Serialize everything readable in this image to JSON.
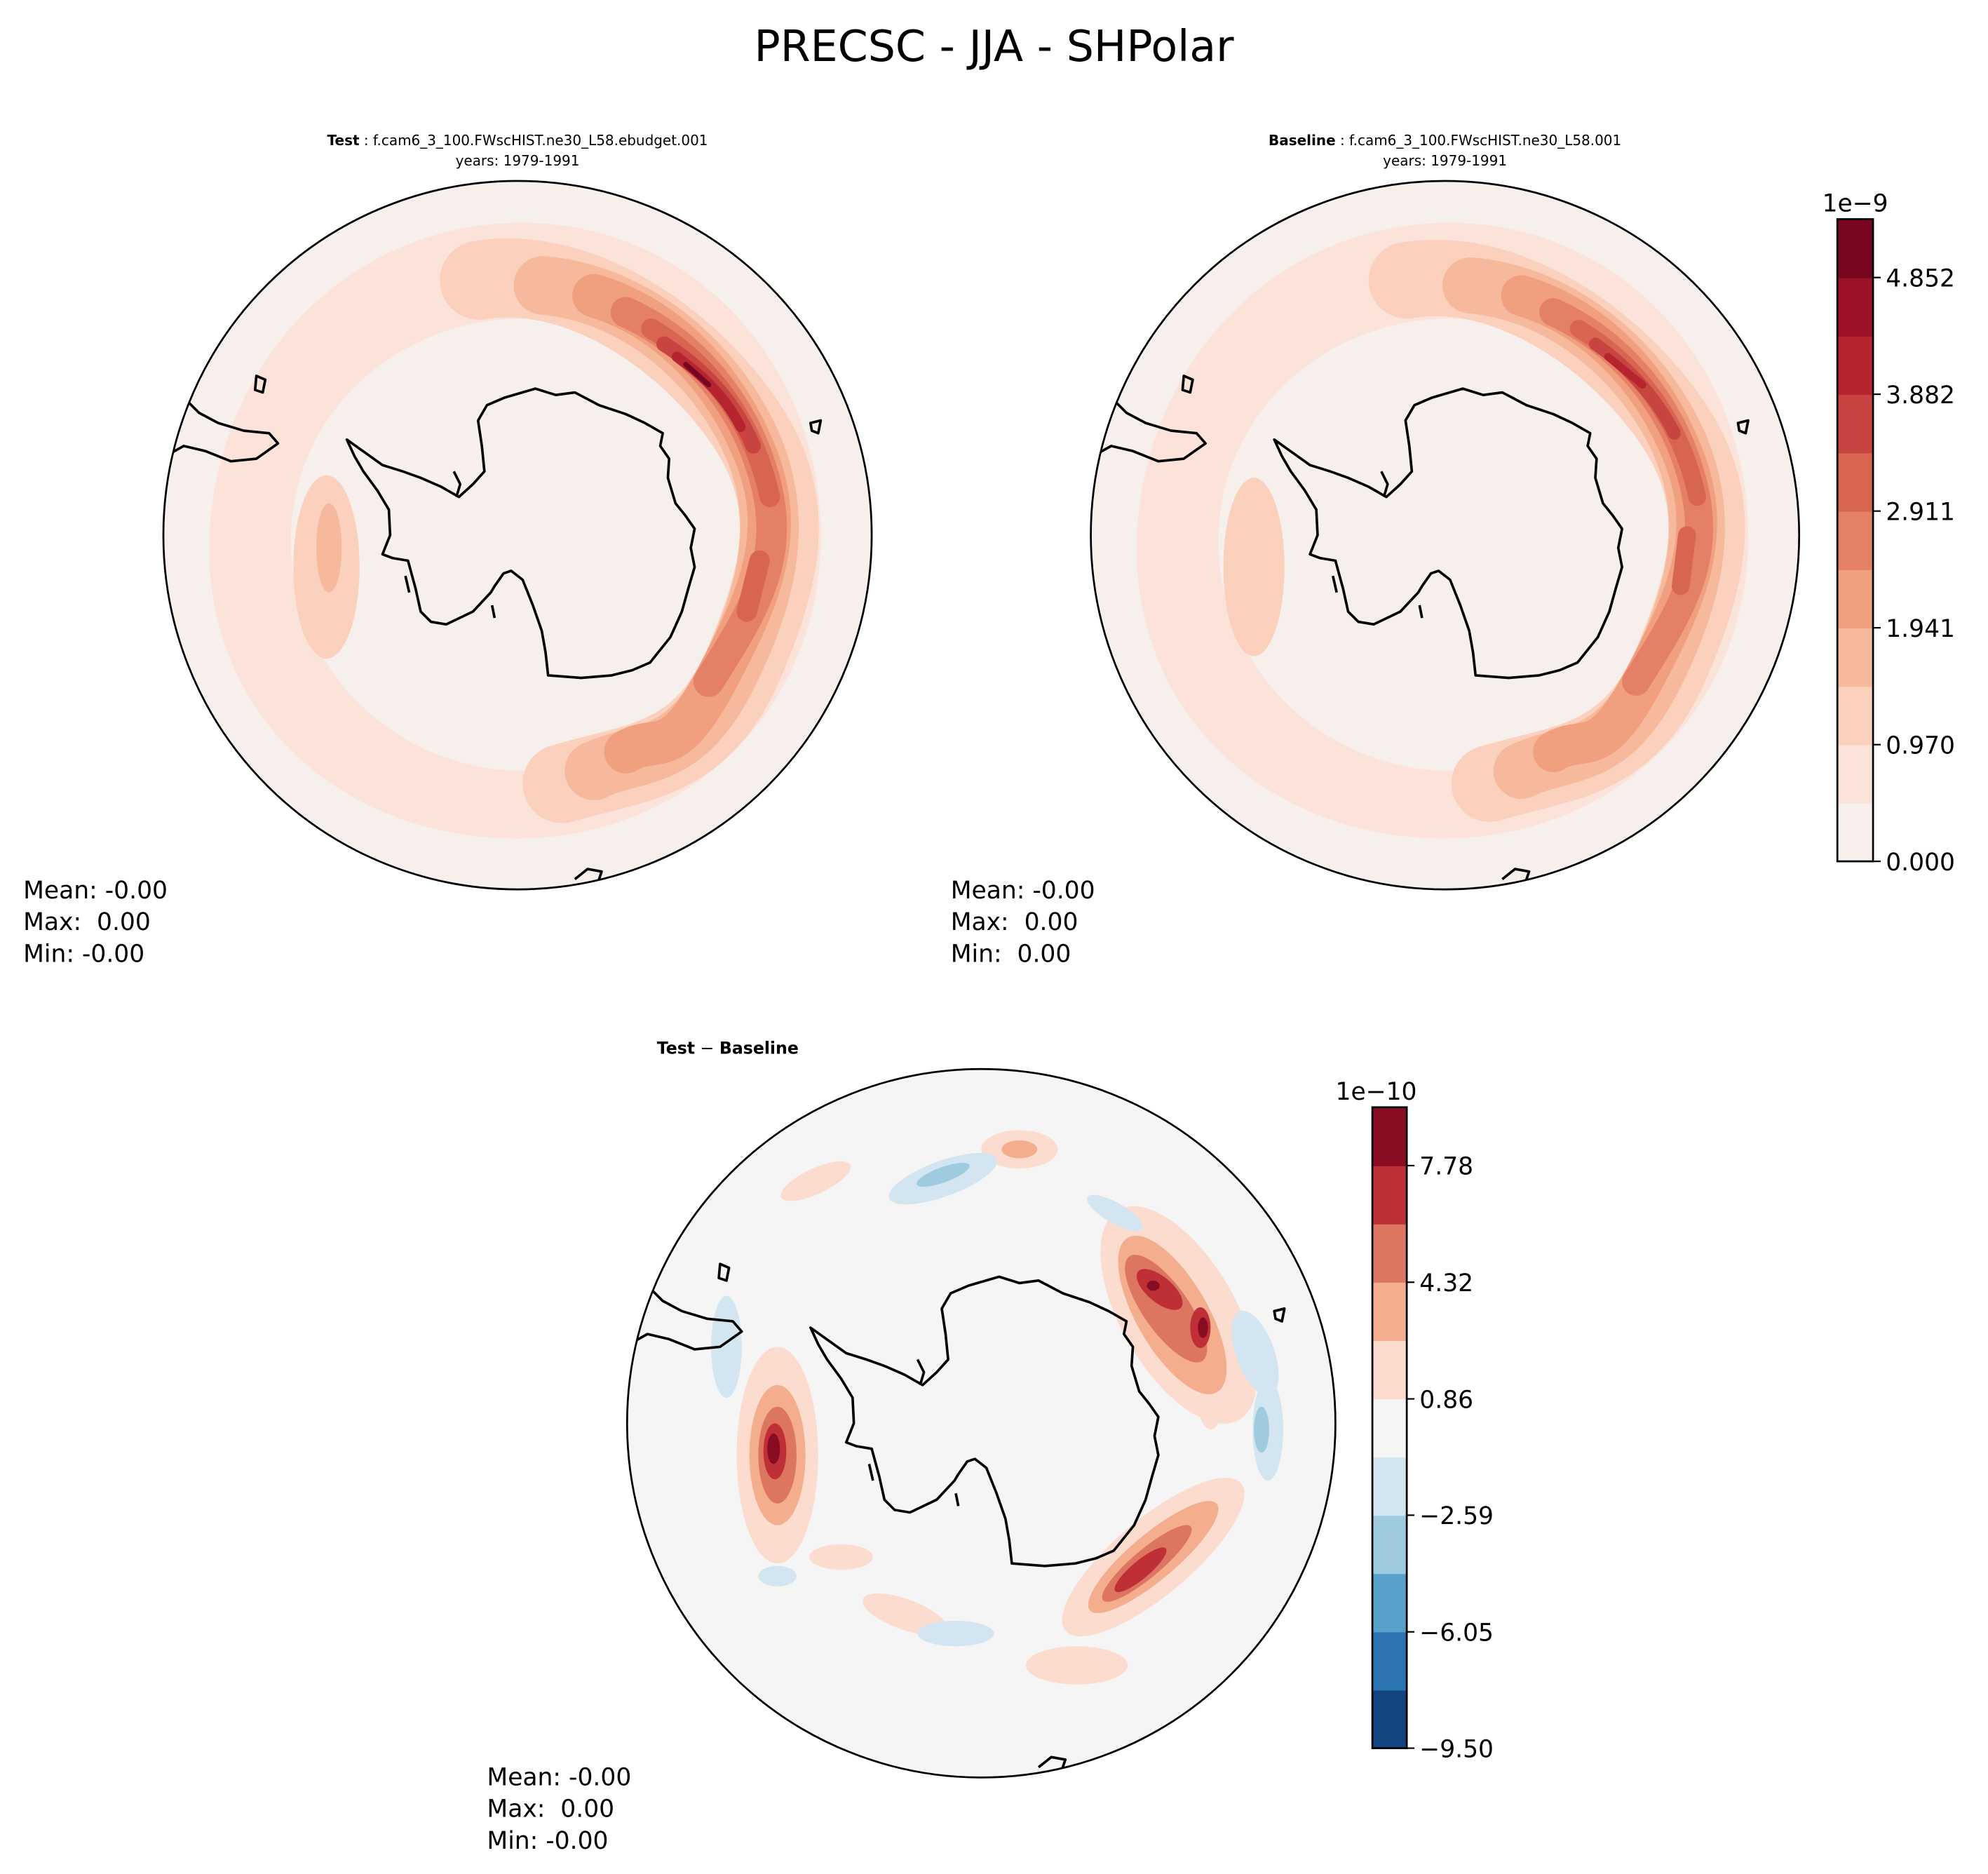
{
  "title": "PRECSC - JJA - SHPolar",
  "chart_data": [
    {
      "type": "heatmap",
      "projection": "south-polar-stereographic",
      "title_bold": "Test",
      "title_rest": " : f.cam6_3_100.FWscHIST.ne30_L58.ebudget.001",
      "years": "years: 1979-1991",
      "stats": {
        "mean": "Mean: -0.00",
        "max": "Max:  0.00",
        "min": "Min: -0.00"
      }
    },
    {
      "type": "heatmap",
      "projection": "south-polar-stereographic",
      "title_bold": "Baseline",
      "title_rest": " : f.cam6_3_100.FWscHIST.ne30_L58.001",
      "years": "years: 1979-1991",
      "stats": {
        "mean": "Mean: -0.00",
        "max": "Max:  0.00",
        "min": "Min:  0.00"
      },
      "colorbar": {
        "exponent": "1e−9",
        "range": [
          0,
          5.337
        ],
        "ticks": [
          0.0,
          0.97,
          1.941,
          2.911,
          3.882,
          4.852
        ],
        "tick_labels": [
          "0.000",
          "0.970",
          "1.941",
          "2.911",
          "3.882",
          "4.852"
        ],
        "colors": [
          "#f6efec",
          "#fbe3d9",
          "#fbd0bd",
          "#f7b99c",
          "#f0a07f",
          "#e58068",
          "#d8654f",
          "#c84441",
          "#b5242f",
          "#9b1126",
          "#790520"
        ]
      }
    },
    {
      "type": "heatmap",
      "projection": "south-polar-stereographic",
      "title_bold": "Test",
      "title_op": " − ",
      "title_bold2": "Baseline",
      "stats": {
        "mean": "Mean: -0.00",
        "max": "Max:  0.00",
        "min": "Min: -0.00"
      },
      "colorbar": {
        "exponent": "1e−10",
        "range": [
          -9.5,
          9.51
        ],
        "ticks": [
          -9.5,
          -6.05,
          -2.59,
          0.86,
          4.32,
          7.78
        ],
        "tick_labels": [
          "−9.50",
          "−6.05",
          "−2.59",
          "0.86",
          "4.32",
          "7.78"
        ],
        "colors": [
          "#124580",
          "#2c74b2",
          "#57a0c9",
          "#9fcbe1",
          "#d2e5f0",
          "#f5f5f5",
          "#fcdcce",
          "#f4ae8d",
          "#dd7660",
          "#be3036",
          "#880d23"
        ]
      }
    }
  ]
}
